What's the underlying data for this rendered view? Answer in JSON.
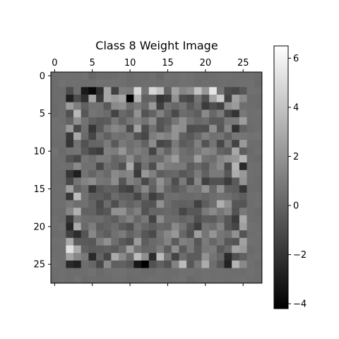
{
  "chart_data": {
    "type": "heatmap",
    "title": "Class 8 Weight Image",
    "rows": 28,
    "cols": 28,
    "x_ticks": [
      "0",
      "5",
      "10",
      "15",
      "20",
      "25"
    ],
    "y_ticks": [
      "0",
      "5",
      "10",
      "15",
      "20",
      "25"
    ],
    "colormap": "gray",
    "vmin": -4.2,
    "vmax": 6.5,
    "colorbar_ticks": [
      "−4",
      "−2",
      "0",
      "2",
      "4",
      "6"
    ],
    "colorbar_tick_values": [
      -4,
      -2,
      0,
      2,
      4,
      6
    ],
    "border_value": 0.4,
    "seed": 8
  }
}
